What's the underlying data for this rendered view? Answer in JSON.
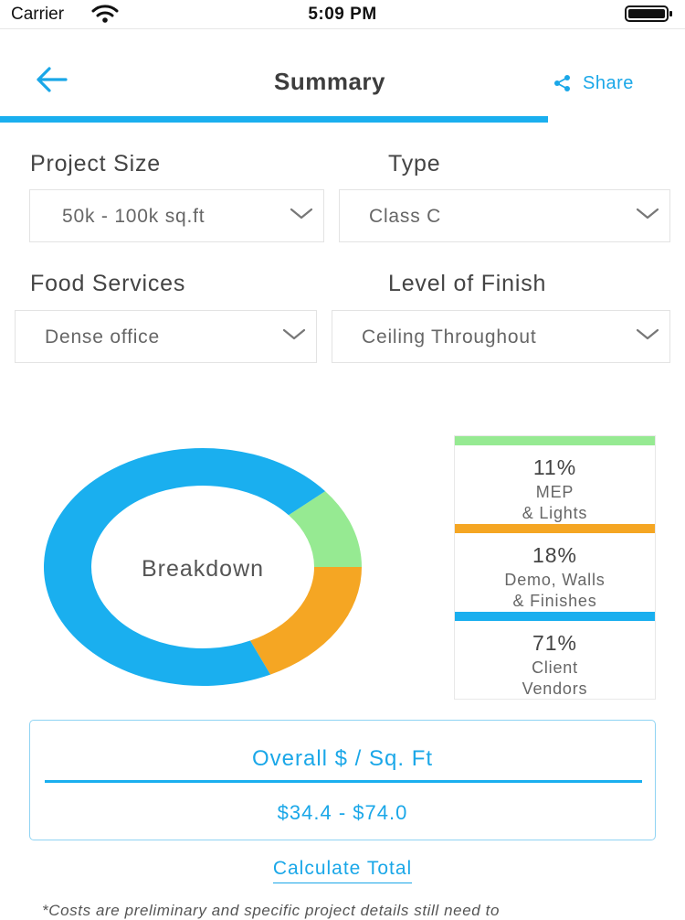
{
  "status_bar": {
    "carrier": "Carrier",
    "time": "5:09 PM"
  },
  "nav": {
    "title": "Summary",
    "share_label": "Share",
    "progress_fraction": 0.8
  },
  "form": {
    "project_size": {
      "label": "Project Size",
      "value": "50k - 100k sq.ft"
    },
    "type": {
      "label": "Type",
      "value": "Class C"
    },
    "food_services": {
      "label": "Food Services",
      "value": "Dense office"
    },
    "level_of_finish": {
      "label": "Level of Finish",
      "value": "Ceiling Throughout"
    }
  },
  "chart_data": {
    "type": "pie",
    "title": "Breakdown",
    "categories": [
      "MEP & Lights",
      "Demo, Walls & Finishes",
      "Client Vendors"
    ],
    "values": [
      11,
      18,
      71
    ],
    "colors": [
      "#96ea92",
      "#f5a623",
      "#1aafef"
    ],
    "labels_pct": [
      "11%",
      "18%",
      "71%"
    ],
    "legend_lines": [
      [
        "MEP",
        "& Lights"
      ],
      [
        "Demo, Walls",
        "& Finishes"
      ],
      [
        "Client",
        "Vendors"
      ]
    ],
    "legend": "right"
  },
  "summary": {
    "title": "Overall $ / Sq. Ft",
    "value": "$34.4 - $74.0"
  },
  "actions": {
    "calculate_label": "Calculate Total"
  },
  "disclaimer": "*Costs are preliminary and specific project details still need to",
  "colors": {
    "accent": "#1aafef",
    "text": "#444444"
  }
}
